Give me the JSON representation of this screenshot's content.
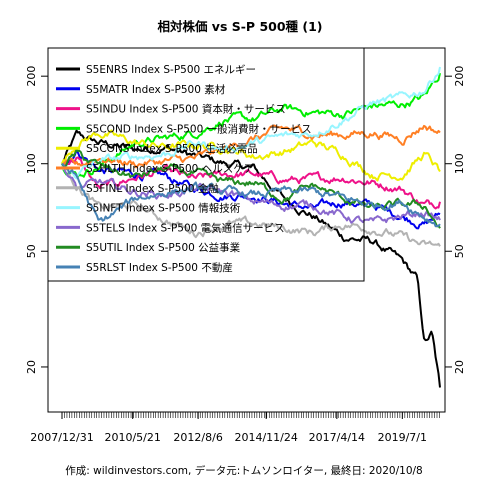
{
  "chart_data": {
    "type": "line",
    "title": "相対株価 vs S-P 500種 (1)",
    "footer": "作成: wildinvestors.com, データ元:トムソンロイター, 最終日: 2020/10/8",
    "y_scale": "log",
    "ylim": [
      14,
      250
    ],
    "y_ticks": [
      20,
      50,
      100,
      200
    ],
    "y_tick_labels": [
      "20",
      "50",
      "100",
      "200"
    ],
    "x_range": [
      "2007-12-31",
      "2020-10-08"
    ],
    "x_tick_labels": [
      "2007/12/31",
      "2010/5/21",
      "2012/8/6",
      "2014/11/24",
      "2017/4/14",
      "2019/7/1"
    ],
    "x_tick_dates": [
      "2007-12-31",
      "2010-05-21",
      "2012-08-06",
      "2014-11-24",
      "2017-04-14",
      "2019-07-01"
    ],
    "legend_position": "top-left",
    "grid": false,
    "series": [
      {
        "name": "S5ENRS Index S-P500 エネルギー",
        "color": "#000000",
        "x": [
          "2008-06-30",
          "2009-03-31",
          "2010-06-30",
          "2011-06-30",
          "2012-06-30",
          "2013-06-30",
          "2014-06-30",
          "2015-06-30",
          "2016-06-30",
          "2017-06-30",
          "2018-06-30",
          "2019-06-30",
          "2019-12-31",
          "2020-03-31",
          "2020-06-30",
          "2020-10-08"
        ],
        "y": [
          125,
          118,
          112,
          114,
          106,
          100,
          96,
          76,
          66,
          56,
          54,
          46,
          40,
          24,
          26,
          17
        ]
      },
      {
        "name": "S5MATR Index S-P500 素材",
        "color": "#0000ee",
        "x": [
          "2008-06-30",
          "2009-03-31",
          "2010-06-30",
          "2011-06-30",
          "2012-06-30",
          "2013-06-30",
          "2014-06-30",
          "2015-06-30",
          "2016-06-30",
          "2017-06-30",
          "2018-06-30",
          "2019-06-30",
          "2020-03-31",
          "2020-10-08"
        ],
        "y": [
          112,
          95,
          92,
          90,
          82,
          78,
          78,
          73,
          70,
          74,
          72,
          66,
          62,
          67
        ]
      },
      {
        "name": "S5INDU Index S-P500 資本財・サービス",
        "color": "#ee1289",
        "x": [
          "2008-06-30",
          "2009-03-31",
          "2010-06-30",
          "2011-06-30",
          "2012-06-30",
          "2013-06-30",
          "2014-06-30",
          "2015-06-30",
          "2016-06-30",
          "2017-06-30",
          "2018-06-30",
          "2019-06-30",
          "2020-03-31",
          "2020-10-08"
        ],
        "y": [
          105,
          82,
          90,
          94,
          88,
          92,
          92,
          88,
          88,
          90,
          86,
          82,
          72,
          74
        ]
      },
      {
        "name": "S5COND Index S-P500 一般消費財・サービス",
        "color": "#00ee00",
        "x": [
          "2008-06-30",
          "2009-03-31",
          "2010-06-30",
          "2011-06-30",
          "2012-06-30",
          "2013-06-30",
          "2014-06-30",
          "2015-06-30",
          "2016-06-30",
          "2017-06-30",
          "2018-06-30",
          "2019-06-30",
          "2020-03-31",
          "2020-10-08"
        ],
        "y": [
          92,
          98,
          118,
          122,
          128,
          142,
          142,
          155,
          150,
          148,
          158,
          160,
          170,
          205
        ]
      },
      {
        "name": "S5CONS Index S-P500 生活必需品",
        "color": "#eeee00",
        "x": [
          "2008-06-30",
          "2009-03-31",
          "2010-06-30",
          "2011-06-30",
          "2012-06-30",
          "2013-06-30",
          "2014-06-30",
          "2015-06-30",
          "2016-06-30",
          "2017-06-30",
          "2018-06-30",
          "2019-06-30",
          "2020-03-31",
          "2020-10-08"
        ],
        "y": [
          118,
          128,
          118,
          114,
          116,
          114,
          106,
          110,
          118,
          108,
          92,
          92,
          108,
          94
        ]
      },
      {
        "name": "S5HLTH Index S-P500 ヘルスケア",
        "color": "#ff7f24",
        "x": [
          "2008-06-30",
          "2009-03-31",
          "2010-06-30",
          "2011-06-30",
          "2012-06-30",
          "2013-06-30",
          "2014-06-30",
          "2015-06-30",
          "2016-06-30",
          "2017-06-30",
          "2018-06-30",
          "2019-06-30",
          "2020-03-31",
          "2020-10-08"
        ],
        "y": [
          98,
          105,
          100,
          102,
          104,
          112,
          122,
          132,
          126,
          126,
          128,
          122,
          136,
          128
        ]
      },
      {
        "name": "S5FINL Index S-P500 金融",
        "color": "#b3b3b3",
        "x": [
          "2008-06-30",
          "2009-03-31",
          "2010-06-30",
          "2011-06-30",
          "2012-06-30",
          "2013-06-30",
          "2014-06-30",
          "2015-06-30",
          "2016-06-30",
          "2017-06-30",
          "2018-06-30",
          "2019-06-30",
          "2020-03-31",
          "2020-10-08"
        ],
        "y": [
          85,
          70,
          72,
          64,
          58,
          62,
          62,
          60,
          58,
          62,
          60,
          56,
          52,
          52
        ]
      },
      {
        "name": "S5INFT Index S-P500 情報技術",
        "color": "#98f5ff",
        "x": [
          "2008-06-30",
          "2009-03-31",
          "2010-06-30",
          "2011-06-30",
          "2012-06-30",
          "2013-06-30",
          "2014-06-30",
          "2015-06-30",
          "2016-06-30",
          "2017-06-30",
          "2018-06-30",
          "2019-06-30",
          "2020-03-31",
          "2020-10-08"
        ],
        "y": [
          92,
          102,
          106,
          108,
          118,
          112,
          118,
          124,
          128,
          142,
          162,
          168,
          180,
          215
        ]
      },
      {
        "name": "S5TELS Index S-P500 電気通信サービス",
        "color": "#8968cd",
        "x": [
          "2008-06-30",
          "2009-03-31",
          "2010-06-30",
          "2011-06-30",
          "2012-06-30",
          "2013-06-30",
          "2014-06-30",
          "2015-06-30",
          "2016-06-30",
          "2017-06-30",
          "2018-06-30",
          "2019-06-30",
          "2020-03-31",
          "2020-10-08"
        ],
        "y": [
          82,
          86,
          80,
          78,
          82,
          80,
          74,
          72,
          72,
          66,
          62,
          66,
          68,
          64
        ]
      },
      {
        "name": "S5UTIL Index S-P500 公益事業",
        "color": "#228b22",
        "x": [
          "2008-06-30",
          "2009-03-31",
          "2010-06-30",
          "2011-06-30",
          "2012-06-30",
          "2013-06-30",
          "2014-06-30",
          "2015-06-30",
          "2016-06-30",
          "2017-06-30",
          "2018-06-30",
          "2019-06-30",
          "2020-03-31",
          "2020-10-08"
        ],
        "y": [
          108,
          98,
          90,
          96,
          92,
          86,
          86,
          76,
          84,
          76,
          70,
          72,
          72,
          60
        ]
      },
      {
        "name": "S5RLST Index S-P500 不動産",
        "color": "#4682b4",
        "x": [
          "2008-06-30",
          "2009-03-31",
          "2010-06-30",
          "2011-06-30",
          "2012-06-30",
          "2013-06-30",
          "2014-06-30",
          "2015-06-30",
          "2016-06-30",
          "2017-06-30",
          "2018-06-30",
          "2019-06-30",
          "2020-03-31",
          "2020-10-08"
        ],
        "y": [
          90,
          62,
          76,
          80,
          82,
          80,
          78,
          80,
          80,
          76,
          72,
          74,
          66,
          62
        ]
      }
    ]
  }
}
